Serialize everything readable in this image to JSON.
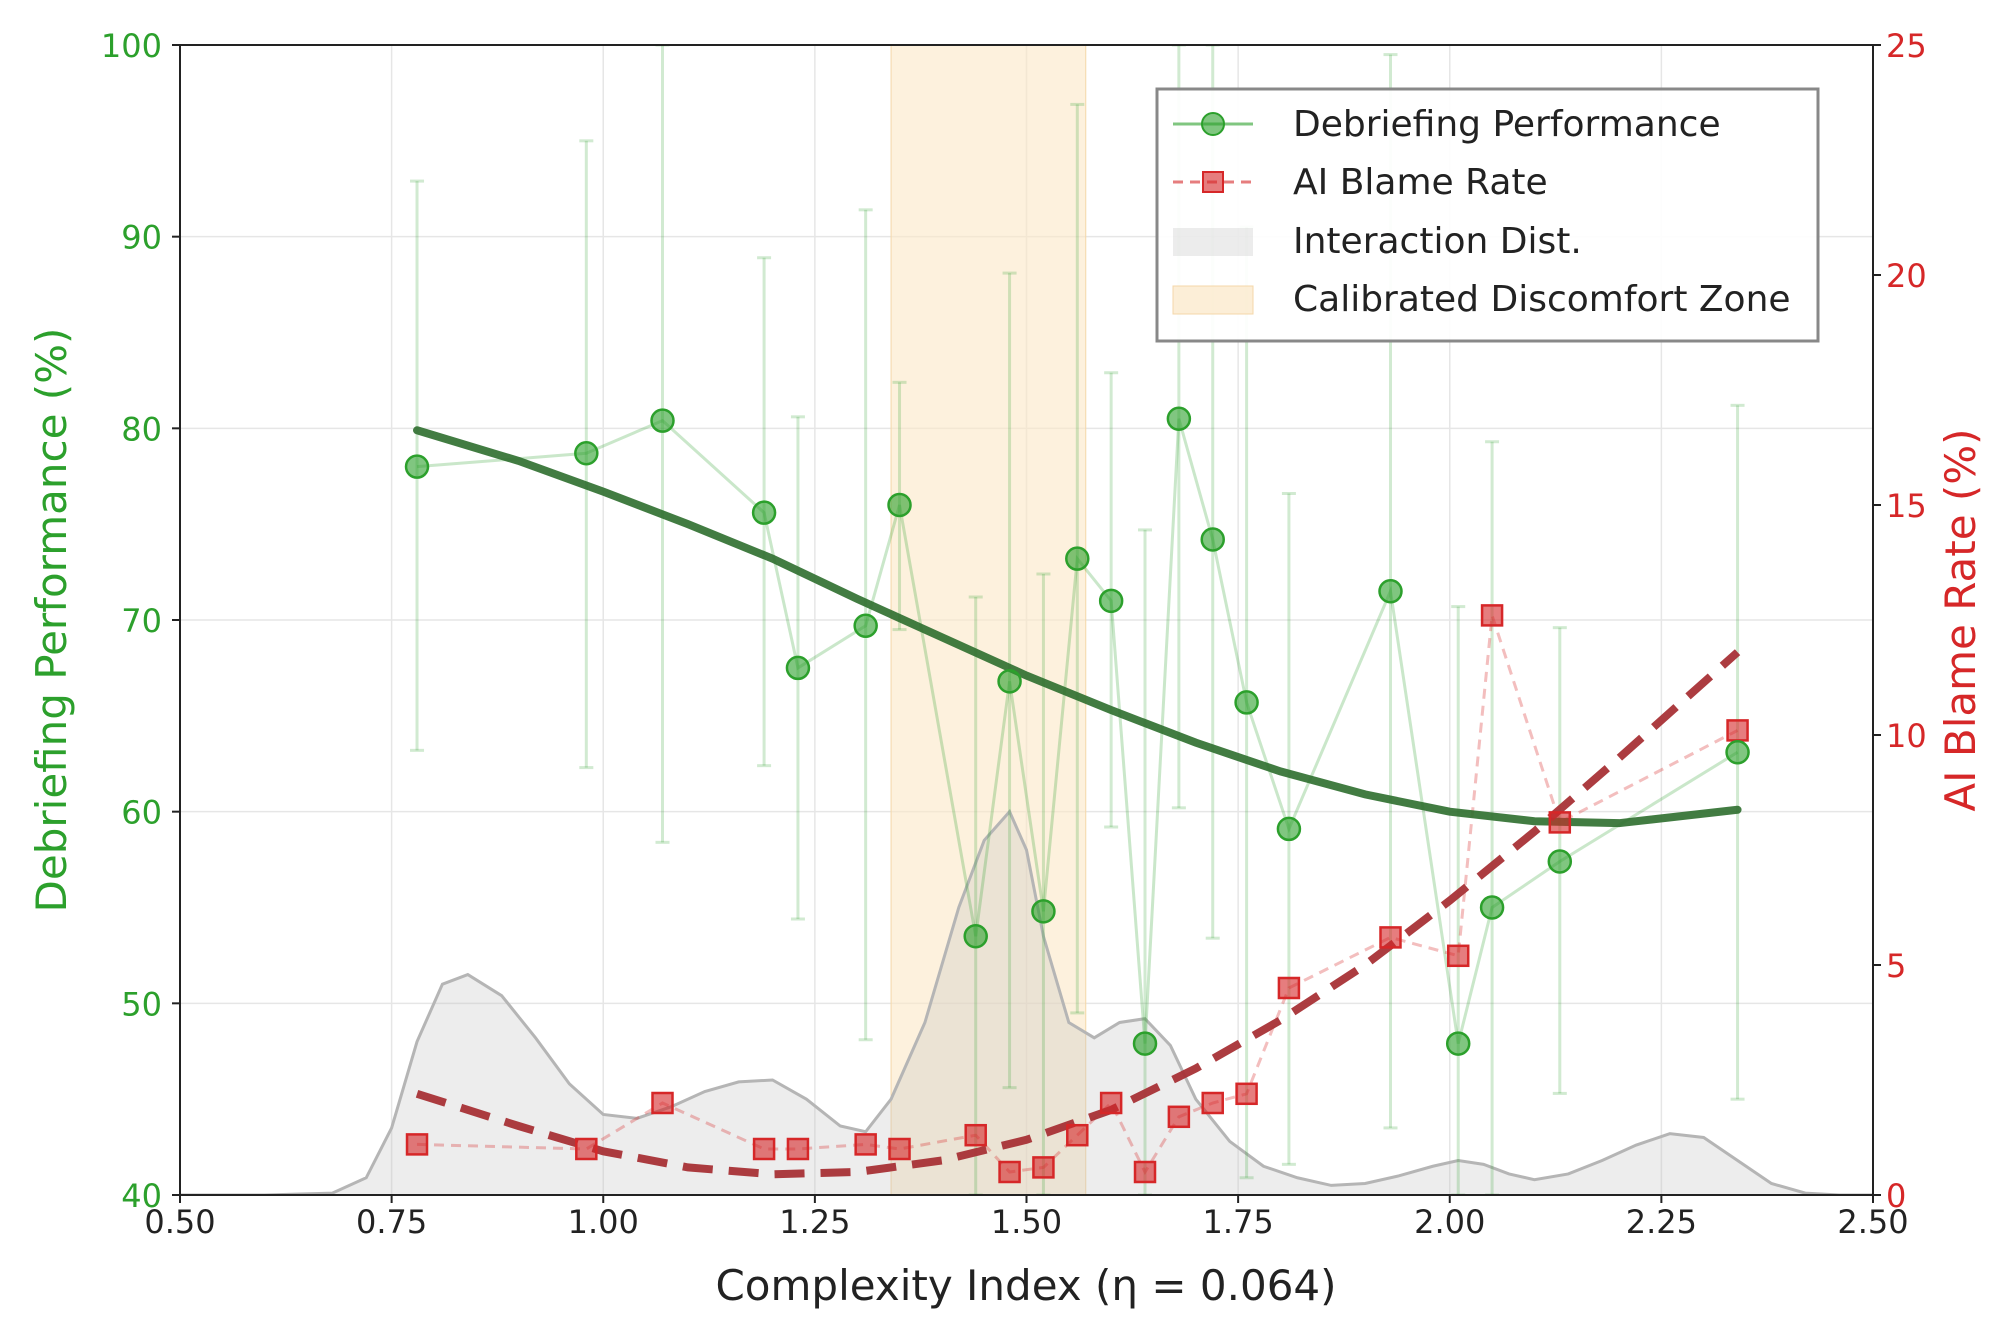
{
  "chart_data": {
    "type": "line",
    "xlabel": "Complexity Index (η = 0.064)",
    "ylabel_left": "Debriefing Performance (%)",
    "ylabel_right": "AI Blame Rate (%)",
    "xlim": [
      0.5,
      2.5
    ],
    "ylim_left": [
      40,
      100
    ],
    "ylim_right": [
      0,
      25
    ],
    "x_ticks": [
      "0.50",
      "0.75",
      "1.00",
      "1.25",
      "1.50",
      "1.75",
      "2.00",
      "2.25",
      "2.50"
    ],
    "y_left_ticks": [
      "40",
      "50",
      "60",
      "70",
      "80",
      "90",
      "100"
    ],
    "y_right_ticks": [
      "0",
      "5",
      "10",
      "15",
      "20",
      "25"
    ],
    "grid": true,
    "legend_position": "top-right",
    "legend": [
      "Debriefing Performance",
      "AI Blame Rate",
      "Interaction Dist.",
      "Calibrated Discomfort Zone"
    ],
    "colors": {
      "performance": "#2ca02c",
      "performance_trend": "#2e6e2e",
      "blame": "#d62728",
      "blame_trend": "#a83236",
      "density": "#bfbfbf",
      "zone": "#fbe7c6",
      "axis": "#222222"
    },
    "zone": {
      "x_start": 1.34,
      "x_end": 1.57
    },
    "performance": {
      "x": [
        0.78,
        0.98,
        1.07,
        1.19,
        1.23,
        1.31,
        1.35,
        1.44,
        1.48,
        1.52,
        1.56,
        1.6,
        1.64,
        1.68,
        1.72,
        1.76,
        1.81,
        1.93,
        2.01,
        2.05,
        2.13,
        2.34
      ],
      "y": [
        78.0,
        78.7,
        80.4,
        75.6,
        67.5,
        69.7,
        76.0,
        53.5,
        66.8,
        54.8,
        73.2,
        71.0,
        47.9,
        80.5,
        74.2,
        65.7,
        59.1,
        71.5,
        47.9,
        55.0,
        57.4,
        63.1
      ],
      "y_low": [
        63.2,
        62.3,
        58.4,
        62.4,
        54.4,
        48.1,
        69.5,
        40.0,
        45.6,
        40.0,
        49.5,
        59.2,
        40.0,
        60.2,
        53.4,
        40.9,
        41.6,
        43.5,
        40.0,
        40.0,
        45.3,
        45.0
      ],
      "y_high": [
        92.9,
        95.0,
        100.0,
        88.9,
        80.6,
        91.4,
        82.4,
        71.2,
        88.1,
        72.4,
        96.9,
        82.9,
        74.7,
        100.0,
        100.0,
        90.5,
        76.6,
        99.5,
        70.7,
        79.3,
        69.6,
        81.2
      ]
    },
    "performance_trend": {
      "x": [
        0.78,
        0.9,
        1.0,
        1.1,
        1.2,
        1.3,
        1.4,
        1.5,
        1.6,
        1.7,
        1.8,
        1.9,
        2.0,
        2.1,
        2.2,
        2.34
      ],
      "y": [
        79.9,
        78.3,
        76.7,
        75.0,
        73.2,
        71.1,
        69.1,
        67.1,
        65.3,
        63.6,
        62.1,
        60.9,
        60.0,
        59.5,
        59.4,
        60.1
      ]
    },
    "blame": {
      "x": [
        0.78,
        0.98,
        1.07,
        1.19,
        1.23,
        1.31,
        1.35,
        1.44,
        1.48,
        1.52,
        1.56,
        1.6,
        1.64,
        1.68,
        1.72,
        1.76,
        1.81,
        1.93,
        2.01,
        2.05,
        2.13,
        2.34
      ],
      "y": [
        1.1,
        1.0,
        2.0,
        1.0,
        1.0,
        1.1,
        1.0,
        1.3,
        0.5,
        0.6,
        1.3,
        2.0,
        0.5,
        1.7,
        2.0,
        2.2,
        4.5,
        5.6,
        5.2,
        12.6,
        8.1,
        10.1
      ]
    },
    "blame_trend": {
      "x": [
        0.78,
        0.9,
        1.0,
        1.1,
        1.2,
        1.3,
        1.4,
        1.5,
        1.6,
        1.7,
        1.8,
        1.9,
        2.0,
        2.1,
        2.2,
        2.34
      ],
      "y": [
        2.2,
        1.5,
        0.95,
        0.6,
        0.45,
        0.5,
        0.75,
        1.2,
        1.85,
        2.75,
        3.8,
        5.0,
        6.4,
        7.9,
        9.5,
        11.8
      ]
    },
    "density": {
      "x": [
        0.5,
        0.6,
        0.68,
        0.72,
        0.75,
        0.78,
        0.81,
        0.84,
        0.88,
        0.92,
        0.96,
        1.0,
        1.04,
        1.08,
        1.12,
        1.16,
        1.2,
        1.24,
        1.28,
        1.31,
        1.34,
        1.38,
        1.42,
        1.45,
        1.48,
        1.5,
        1.52,
        1.55,
        1.58,
        1.61,
        1.64,
        1.67,
        1.7,
        1.74,
        1.78,
        1.82,
        1.86,
        1.9,
        1.94,
        1.98,
        2.01,
        2.04,
        2.07,
        2.1,
        2.14,
        2.18,
        2.22,
        2.26,
        2.3,
        2.34,
        2.38,
        2.42,
        2.46,
        2.5
      ],
      "y": [
        40.0,
        40.0,
        40.1,
        40.9,
        43.5,
        48.0,
        51.0,
        51.5,
        50.4,
        48.2,
        45.8,
        44.2,
        44.0,
        44.6,
        45.4,
        45.9,
        46.0,
        45.0,
        43.6,
        43.3,
        45.0,
        49.0,
        55.0,
        58.5,
        60.0,
        58.0,
        53.5,
        49.0,
        48.2,
        49.0,
        49.2,
        47.8,
        45.0,
        42.8,
        41.5,
        40.9,
        40.5,
        40.6,
        41.0,
        41.5,
        41.8,
        41.6,
        41.1,
        40.8,
        41.1,
        41.8,
        42.6,
        43.2,
        43.0,
        41.8,
        40.6,
        40.1,
        40.0,
        40.0
      ]
    }
  }
}
